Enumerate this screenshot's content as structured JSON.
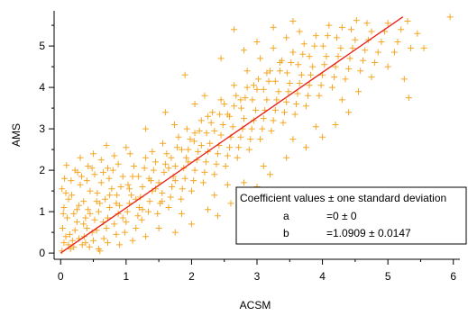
{
  "chart_data": {
    "type": "scatter",
    "xlabel": "ACSM",
    "ylabel": "AMS",
    "xlim": [
      -0.1,
      6.1
    ],
    "ylim": [
      -0.15,
      5.85
    ],
    "x_ticks": [
      "0",
      "1",
      "2",
      "3",
      "4",
      "5",
      "6"
    ],
    "y_ticks": [
      "0",
      "1",
      "2",
      "3",
      "4",
      "5"
    ],
    "grid": false,
    "point_color": "#f5a623",
    "line_color": "#e8231a",
    "marker": "plus",
    "fit_line": {
      "a": 0,
      "b": 1.0909,
      "x_range": [
        0,
        5.23
      ]
    },
    "points": [
      [
        0.02,
        0.05
      ],
      [
        0.05,
        0.25
      ],
      [
        0.08,
        0.4
      ],
      [
        0.03,
        0.6
      ],
      [
        0.1,
        0.85
      ],
      [
        0.05,
        1.1
      ],
      [
        0.12,
        1.3
      ],
      [
        0.02,
        1.55
      ],
      [
        0.06,
        1.8
      ],
      [
        0.09,
        2.12
      ],
      [
        0.15,
        0.1
      ],
      [
        0.18,
        0.3
      ],
      [
        0.22,
        0.55
      ],
      [
        0.25,
        0.75
      ],
      [
        0.2,
        0.95
      ],
      [
        0.28,
        1.15
      ],
      [
        0.17,
        1.4
      ],
      [
        0.3,
        1.65
      ],
      [
        0.26,
        1.95
      ],
      [
        0.14,
        0.45
      ],
      [
        0.33,
        0.2
      ],
      [
        0.36,
        0.4
      ],
      [
        0.4,
        0.6
      ],
      [
        0.38,
        0.85
      ],
      [
        0.42,
        1.05
      ],
      [
        0.35,
        1.25
      ],
      [
        0.45,
        1.5
      ],
      [
        0.4,
        1.75
      ],
      [
        0.48,
        2.05
      ],
      [
        0.44,
        0.15
      ],
      [
        0.5,
        0.3
      ],
      [
        0.55,
        0.55
      ],
      [
        0.52,
        0.8
      ],
      [
        0.58,
        1.0
      ],
      [
        0.6,
        1.2
      ],
      [
        0.56,
        1.45
      ],
      [
        0.62,
        1.7
      ],
      [
        0.65,
        1.95
      ],
      [
        0.58,
        0.1
      ],
      [
        0.66,
        0.35
      ],
      [
        0.7,
        0.6
      ],
      [
        0.72,
        0.85
      ],
      [
        0.75,
        1.1
      ],
      [
        0.68,
        1.3
      ],
      [
        0.78,
        1.55
      ],
      [
        0.74,
        1.8
      ],
      [
        0.8,
        2.0
      ],
      [
        0.72,
        0.25
      ],
      [
        0.85,
        0.45
      ],
      [
        0.82,
        0.7
      ],
      [
        0.88,
        0.95
      ],
      [
        0.9,
        1.15
      ],
      [
        0.86,
        1.4
      ],
      [
        0.92,
        1.6
      ],
      [
        0.95,
        1.85
      ],
      [
        0.88,
        2.15
      ],
      [
        0.98,
        0.5
      ],
      [
        1.0,
        0.75
      ],
      [
        1.02,
        1.0
      ],
      [
        1.05,
        1.2
      ],
      [
        1.08,
        1.4
      ],
      [
        1.03,
        1.65
      ],
      [
        1.1,
        1.85
      ],
      [
        1.12,
        2.1
      ],
      [
        1.06,
        2.4
      ],
      [
        1.15,
        0.6
      ],
      [
        1.18,
        0.9
      ],
      [
        1.2,
        1.1
      ],
      [
        1.22,
        1.35
      ],
      [
        1.25,
        1.6
      ],
      [
        1.19,
        1.85
      ],
      [
        1.28,
        2.05
      ],
      [
        1.3,
        2.3
      ],
      [
        1.24,
        0.8
      ],
      [
        1.34,
        1.0
      ],
      [
        1.36,
        1.25
      ],
      [
        1.4,
        1.5
      ],
      [
        1.38,
        1.75
      ],
      [
        1.42,
        2.0
      ],
      [
        1.45,
        2.2
      ],
      [
        1.4,
        2.45
      ],
      [
        1.48,
        0.95
      ],
      [
        1.52,
        1.2
      ],
      [
        1.55,
        1.45
      ],
      [
        1.5,
        1.7
      ],
      [
        1.58,
        1.95
      ],
      [
        1.6,
        2.15
      ],
      [
        1.62,
        2.4
      ],
      [
        1.56,
        2.65
      ],
      [
        1.65,
        1.1
      ],
      [
        1.68,
        1.35
      ],
      [
        1.7,
        1.6
      ],
      [
        1.72,
        1.85
      ],
      [
        1.75,
        2.1
      ],
      [
        1.69,
        2.3
      ],
      [
        1.78,
        2.55
      ],
      [
        1.8,
        2.8
      ],
      [
        1.74,
        3.1
      ],
      [
        1.84,
        1.3
      ],
      [
        1.86,
        1.55
      ],
      [
        1.9,
        1.8
      ],
      [
        1.88,
        2.05
      ],
      [
        1.92,
        2.3
      ],
      [
        1.95,
        2.5
      ],
      [
        1.98,
        2.75
      ],
      [
        1.93,
        3.0
      ],
      [
        2.0,
        1.5
      ],
      [
        2.03,
        1.75
      ],
      [
        2.05,
        2.0
      ],
      [
        2.08,
        2.25
      ],
      [
        2.1,
        2.45
      ],
      [
        2.04,
        2.7
      ],
      [
        2.12,
        2.95
      ],
      [
        2.15,
        3.2
      ],
      [
        2.18,
        1.7
      ],
      [
        2.2,
        1.95
      ],
      [
        2.22,
        2.2
      ],
      [
        2.25,
        2.45
      ],
      [
        2.28,
        2.65
      ],
      [
        2.23,
        2.9
      ],
      [
        2.3,
        3.15
      ],
      [
        2.32,
        3.4
      ],
      [
        2.35,
        1.9
      ],
      [
        2.38,
        2.15
      ],
      [
        2.4,
        2.4
      ],
      [
        2.42,
        2.6
      ],
      [
        2.45,
        2.85
      ],
      [
        2.48,
        3.1
      ],
      [
        2.43,
        3.35
      ],
      [
        2.5,
        3.6
      ],
      [
        2.52,
        2.1
      ],
      [
        2.55,
        2.35
      ],
      [
        2.58,
        2.55
      ],
      [
        2.6,
        2.8
      ],
      [
        2.63,
        3.05
      ],
      [
        2.58,
        3.3
      ],
      [
        2.65,
        3.55
      ],
      [
        2.68,
        3.8
      ],
      [
        2.7,
        2.3
      ],
      [
        2.72,
        2.55
      ],
      [
        2.75,
        2.8
      ],
      [
        2.78,
        3.0
      ],
      [
        2.8,
        3.25
      ],
      [
        2.76,
        3.5
      ],
      [
        2.82,
        3.75
      ],
      [
        2.85,
        4.0
      ],
      [
        2.88,
        2.5
      ],
      [
        2.9,
        2.75
      ],
      [
        2.92,
        3.0
      ],
      [
        2.95,
        3.2
      ],
      [
        2.98,
        3.45
      ],
      [
        2.93,
        3.7
      ],
      [
        3.0,
        3.95
      ],
      [
        3.02,
        4.2
      ],
      [
        3.05,
        2.75
      ],
      [
        3.08,
        3.0
      ],
      [
        3.1,
        3.25
      ],
      [
        3.12,
        3.45
      ],
      [
        3.15,
        3.7
      ],
      [
        3.1,
        3.95
      ],
      [
        3.18,
        4.15
      ],
      [
        3.2,
        4.4
      ],
      [
        3.22,
        2.95
      ],
      [
        3.25,
        3.2
      ],
      [
        3.28,
        3.45
      ],
      [
        3.3,
        3.7
      ],
      [
        3.33,
        3.9
      ],
      [
        3.28,
        4.15
      ],
      [
        3.35,
        4.4
      ],
      [
        3.38,
        4.65
      ],
      [
        3.4,
        3.15
      ],
      [
        3.42,
        3.4
      ],
      [
        3.45,
        3.65
      ],
      [
        3.48,
        3.9
      ],
      [
        3.5,
        4.1
      ],
      [
        3.46,
        4.35
      ],
      [
        3.52,
        4.6
      ],
      [
        3.55,
        4.85
      ],
      [
        3.58,
        3.35
      ],
      [
        3.6,
        3.6
      ],
      [
        3.62,
        3.85
      ],
      [
        3.65,
        4.1
      ],
      [
        3.68,
        4.3
      ],
      [
        3.63,
        4.55
      ],
      [
        3.7,
        4.8
      ],
      [
        3.72,
        5.05
      ],
      [
        3.75,
        3.55
      ],
      [
        3.78,
        3.8
      ],
      [
        3.8,
        4.05
      ],
      [
        3.82,
        4.3
      ],
      [
        3.85,
        4.5
      ],
      [
        3.8,
        4.75
      ],
      [
        3.88,
        5.0
      ],
      [
        3.9,
        5.25
      ],
      [
        3.95,
        3.8
      ],
      [
        3.98,
        4.05
      ],
      [
        4.0,
        4.3
      ],
      [
        4.03,
        4.55
      ],
      [
        4.06,
        4.75
      ],
      [
        4.01,
        5.0
      ],
      [
        4.08,
        5.25
      ],
      [
        4.1,
        5.5
      ],
      [
        4.15,
        4.0
      ],
      [
        4.18,
        4.25
      ],
      [
        4.2,
        4.5
      ],
      [
        4.24,
        4.75
      ],
      [
        4.28,
        4.95
      ],
      [
        4.22,
        5.2
      ],
      [
        4.3,
        5.45
      ],
      [
        4.35,
        4.2
      ],
      [
        4.4,
        4.45
      ],
      [
        4.42,
        4.7
      ],
      [
        4.46,
        4.95
      ],
      [
        4.5,
        5.15
      ],
      [
        4.44,
        5.4
      ],
      [
        4.52,
        5.62
      ],
      [
        4.58,
        4.4
      ],
      [
        4.62,
        4.65
      ],
      [
        4.65,
        4.9
      ],
      [
        4.7,
        5.15
      ],
      [
        4.75,
        5.35
      ],
      [
        4.68,
        5.55
      ],
      [
        4.8,
        4.6
      ],
      [
        4.85,
        4.85
      ],
      [
        4.9,
        5.1
      ],
      [
        4.95,
        5.35
      ],
      [
        5.0,
        5.55
      ],
      [
        5.1,
        4.85
      ],
      [
        5.15,
        5.1
      ],
      [
        5.2,
        5.4
      ],
      [
        5.3,
        5.6
      ],
      [
        5.35,
        4.95
      ],
      [
        5.45,
        5.3
      ],
      [
        5.55,
        4.95
      ],
      [
        5.0,
        4.5
      ],
      [
        5.25,
        4.2
      ],
      [
        5.32,
        3.75
      ],
      [
        5.95,
        5.7
      ],
      [
        3.0,
        5.1
      ],
      [
        3.25,
        5.45
      ],
      [
        2.65,
        5.4
      ],
      [
        3.55,
        5.6
      ],
      [
        2.45,
        4.7
      ],
      [
        2.8,
        4.9
      ],
      [
        1.9,
        4.3
      ],
      [
        2.2,
        3.8
      ],
      [
        2.05,
        3.6
      ],
      [
        1.6,
        3.4
      ],
      [
        1.3,
        3.0
      ],
      [
        1.0,
        2.55
      ],
      [
        0.7,
        2.6
      ],
      [
        0.5,
        2.4
      ],
      [
        0.3,
        2.3
      ],
      [
        1.75,
        0.5
      ],
      [
        2.0,
        0.7
      ],
      [
        2.25,
        1.05
      ],
      [
        2.6,
        1.2
      ],
      [
        2.4,
        0.9
      ],
      [
        3.0,
        1.6
      ],
      [
        3.2,
        1.9
      ],
      [
        3.45,
        2.3
      ],
      [
        3.75,
        2.55
      ],
      [
        4.0,
        2.8
      ],
      [
        4.2,
        3.1
      ],
      [
        4.4,
        3.4
      ],
      [
        1.5,
        0.6
      ],
      [
        1.3,
        0.4
      ],
      [
        1.1,
        0.3
      ],
      [
        0.9,
        0.2
      ],
      [
        0.6,
        0.05
      ],
      [
        2.8,
        1.7
      ],
      [
        3.1,
        2.1
      ],
      [
        3.55,
        2.75
      ],
      [
        3.9,
        3.05
      ],
      [
        4.3,
        3.7
      ],
      [
        4.55,
        3.9
      ],
      [
        4.75,
        4.25
      ],
      [
        2.35,
        1.4
      ],
      [
        2.55,
        1.65
      ],
      [
        1.85,
        0.95
      ],
      [
        0.25,
        1.05
      ],
      [
        0.35,
        0.7
      ],
      [
        0.45,
        0.95
      ],
      [
        0.55,
        1.25
      ],
      [
        0.65,
        0.75
      ],
      [
        0.75,
        1.4
      ],
      [
        0.85,
        1.2
      ],
      [
        0.95,
        0.85
      ],
      [
        1.05,
        1.55
      ],
      [
        1.15,
        1.3
      ],
      [
        1.25,
        1.05
      ],
      [
        1.35,
        1.8
      ],
      [
        1.45,
        1.55
      ],
      [
        1.55,
        1.25
      ],
      [
        1.65,
        2.05
      ],
      [
        1.75,
        1.75
      ],
      [
        1.85,
        2.5
      ],
      [
        1.95,
        2.2
      ],
      [
        2.05,
        2.9
      ],
      [
        2.15,
        2.6
      ],
      [
        2.25,
        3.3
      ],
      [
        2.35,
        2.95
      ],
      [
        2.45,
        3.7
      ],
      [
        2.55,
        3.35
      ],
      [
        2.65,
        4.05
      ],
      [
        2.75,
        3.7
      ],
      [
        2.85,
        4.4
      ],
      [
        2.95,
        4.05
      ],
      [
        3.05,
        4.7
      ],
      [
        3.15,
        4.35
      ],
      [
        3.25,
        4.95
      ],
      [
        3.35,
        4.6
      ],
      [
        3.45,
        5.2
      ],
      [
        3.55,
        4.85
      ],
      [
        3.65,
        5.35
      ],
      [
        0.12,
        0.2
      ],
      [
        0.2,
        0.15
      ],
      [
        0.28,
        0.35
      ],
      [
        0.38,
        0.25
      ],
      [
        0.48,
        0.5
      ],
      [
        0.04,
        0.95
      ],
      [
        0.08,
        1.45
      ],
      [
        0.16,
        1.75
      ],
      [
        0.22,
        2.0
      ],
      [
        0.32,
        1.85
      ],
      [
        0.42,
        2.1
      ],
      [
        0.52,
        1.9
      ],
      [
        0.62,
        2.25
      ],
      [
        0.72,
        2.05
      ],
      [
        0.82,
        2.35
      ]
    ]
  },
  "legend": {
    "header": "Coefficient values ± one standard deviation",
    "rows": [
      {
        "name": "a",
        "value": "=0 ± 0"
      },
      {
        "name": "b",
        "value": "=1.0909 ± 0.0147"
      }
    ]
  }
}
